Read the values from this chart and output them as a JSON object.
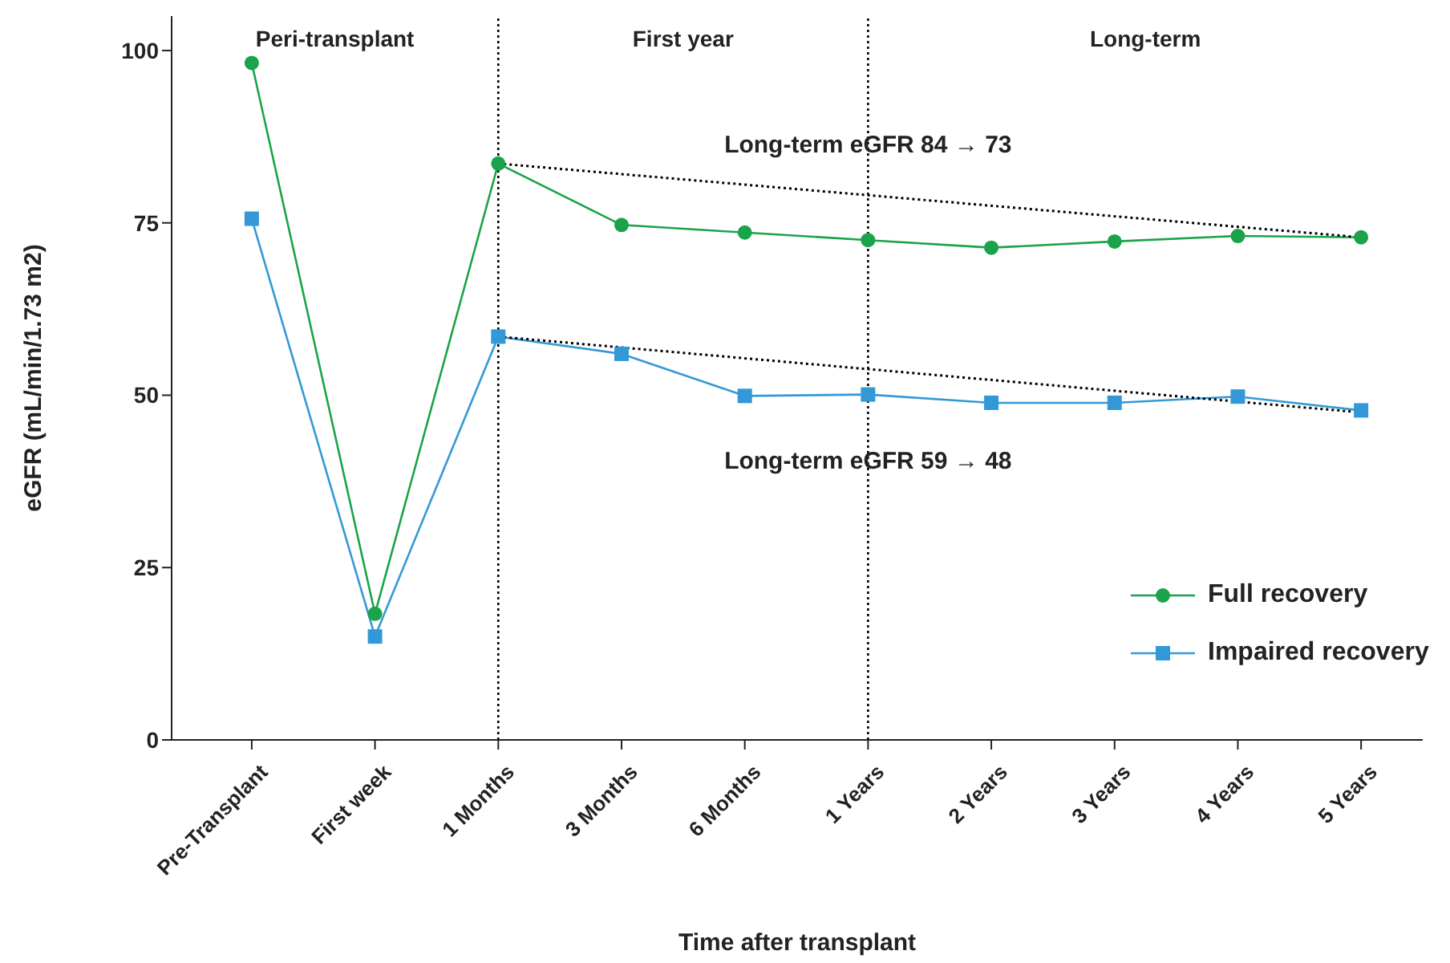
{
  "chart_data": {
    "type": "line",
    "xlabel": "Time after transplant",
    "ylabel": "eGFR (mL/min/1.73 m2)",
    "categories": [
      "Pre-Transplant",
      "First week",
      "1 Months",
      "3 Months",
      "6 Months",
      "1 Years",
      "2 Years",
      "3 Years",
      "4 Years",
      "5 Years"
    ],
    "series": [
      {
        "name": "Full recovery",
        "color": "#1aa34a",
        "marker": "circle",
        "values": [
          98.2,
          18.3,
          83.6,
          74.7,
          73.6,
          72.5,
          71.4,
          72.3,
          73.1,
          72.9
        ]
      },
      {
        "name": "Impaired recovery",
        "color": "#3399d6",
        "marker": "square",
        "values": [
          75.6,
          15,
          58.5,
          56,
          49.9,
          50.1,
          48.9,
          48.9,
          49.8,
          47.8
        ]
      },
      {
        "type": "line",
        "color": "#000000",
        "marker": "none",
        "line_style": "dotted",
        "x": [
          "1 Months",
          "5 Years"
        ],
        "values": [
          83.6,
          72.9
        ]
      },
      {
        "type": "line",
        "color": "#000000",
        "marker": "none",
        "line_style": "dotted",
        "x": [
          "1 Months",
          "5 Years"
        ],
        "values": [
          58.5,
          47.5
        ]
      }
    ],
    "ylim": [
      0,
      105
    ],
    "yticks": [
      0,
      25,
      50,
      75,
      100
    ],
    "ref_lines": [
      {
        "axis": "x",
        "value": "1 Months",
        "line_style": "dotted",
        "color": "#000000"
      },
      {
        "axis": "x",
        "value": "1 Years",
        "line_style": "dotted",
        "color": "#000000"
      }
    ],
    "annotations": [
      "Peri-transplant",
      "First year",
      "Long-term",
      {
        "text": "Long-term eGFR 84 → 73",
        "x": "1 Years",
        "y": 86
      },
      {
        "text": "Long-term eGFR 59 → 48",
        "x": "1 Years",
        "y": 40
      }
    ],
    "legend": "bottom right"
  }
}
